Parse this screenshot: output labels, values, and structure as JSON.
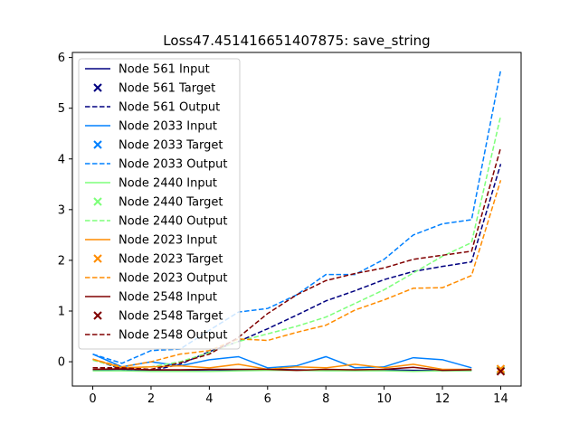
{
  "chart_data": {
    "type": "line",
    "title": "Loss47.451416651407875: save_string",
    "xlabel": "",
    "ylabel": "",
    "xlim": [
      -0.7,
      14.7
    ],
    "ylim": [
      -0.48,
      6.1
    ],
    "xticks": [
      0,
      2,
      4,
      6,
      8,
      10,
      12,
      14
    ],
    "yticks": [
      0,
      1,
      2,
      3,
      4,
      5,
      6
    ],
    "grid": false,
    "legend_position": "upper-left",
    "x": [
      0,
      1,
      2,
      3,
      4,
      5,
      6,
      7,
      8,
      9,
      10,
      11,
      12,
      13
    ],
    "target_x": 14,
    "series": [
      {
        "node": "Node 561",
        "color": "#000080",
        "input_label": "Node 561 Input",
        "target_label": "Node 561 Target",
        "output_label": "Node 561 Output",
        "input": [
          -0.16,
          -0.15,
          -0.17,
          -0.17,
          -0.18,
          -0.16,
          -0.15,
          -0.16,
          -0.17,
          -0.17,
          -0.16,
          -0.17,
          -0.17,
          -0.17
        ],
        "target": -0.17,
        "output": [
          0.05,
          -0.15,
          -0.18,
          -0.05,
          0.2,
          0.4,
          0.65,
          0.92,
          1.2,
          1.4,
          1.62,
          1.78,
          1.88,
          1.97,
          3.9
        ]
      },
      {
        "node": "Node 2033",
        "color": "#0080ff",
        "input_label": "Node 2033 Input",
        "target_label": "Node 2033 Target",
        "output_label": "Node 2033 Output",
        "input": [
          0.15,
          -0.1,
          0.0,
          -0.08,
          0.04,
          0.1,
          -0.12,
          -0.08,
          0.1,
          -0.12,
          -0.1,
          0.08,
          0.04,
          -0.12
        ],
        "target": -0.17,
        "output": [
          0.15,
          -0.03,
          0.22,
          0.25,
          0.62,
          0.98,
          1.05,
          1.32,
          1.72,
          1.72,
          2.02,
          2.5,
          2.72,
          2.8,
          5.75
        ]
      },
      {
        "node": "Node 2440",
        "color": "#7dff7a",
        "input_label": "Node 2440 Input",
        "target_label": "Node 2440 Target",
        "output_label": "Node 2440 Output",
        "input": [
          -0.18,
          -0.18,
          -0.19,
          -0.19,
          -0.19,
          -0.18,
          -0.17,
          -0.17,
          -0.18,
          -0.18,
          -0.18,
          -0.19,
          -0.18,
          -0.18
        ],
        "target": -0.17,
        "output": [
          0.03,
          -0.12,
          -0.1,
          0.0,
          0.18,
          0.4,
          0.55,
          0.7,
          0.88,
          1.15,
          1.42,
          1.75,
          2.08,
          2.35,
          4.85
        ]
      },
      {
        "node": "Node 2023",
        "color": "#ff8c00",
        "input_label": "Node 2023 Input",
        "target_label": "Node 2023 Target",
        "output_label": "Node 2023 Output",
        "input": [
          0.05,
          -0.12,
          -0.1,
          -0.08,
          -0.12,
          -0.05,
          -0.15,
          -0.1,
          -0.12,
          -0.05,
          -0.12,
          -0.05,
          -0.15,
          -0.15
        ],
        "target": -0.14,
        "output": [
          0.05,
          -0.1,
          0.0,
          0.15,
          0.22,
          0.45,
          0.42,
          0.58,
          0.72,
          1.02,
          1.22,
          1.45,
          1.46,
          1.7,
          3.58
        ]
      },
      {
        "node": "Node 2548",
        "color": "#800000",
        "input_label": "Node 2548 Input",
        "target_label": "Node 2548 Target",
        "output_label": "Node 2548 Output",
        "input": [
          -0.15,
          -0.14,
          -0.16,
          -0.16,
          -0.15,
          -0.15,
          -0.15,
          -0.17,
          -0.15,
          -0.16,
          -0.15,
          -0.11,
          -0.17,
          -0.16
        ],
        "target": -0.19,
        "output": [
          -0.12,
          -0.12,
          -0.15,
          -0.02,
          0.15,
          0.48,
          0.95,
          1.32,
          1.6,
          1.74,
          1.85,
          2.02,
          2.1,
          2.18,
          4.22
        ]
      }
    ]
  }
}
